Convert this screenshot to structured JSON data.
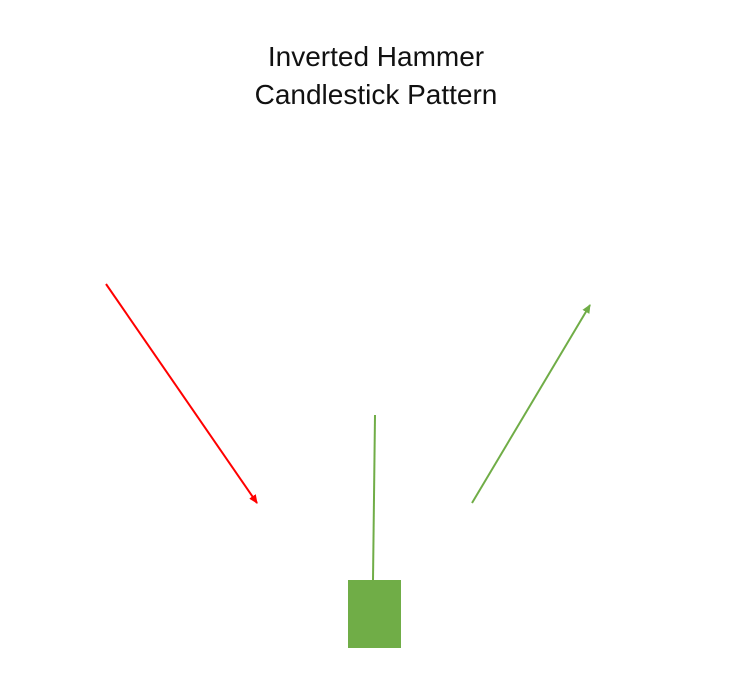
{
  "title": {
    "line1": "Inverted Hammer",
    "line2": "Candlestick Pattern"
  },
  "colors": {
    "downtrend_arrow": "#ff0000",
    "uptrend_arrow": "#70ad47",
    "candle": "#70ad47",
    "text": "#111111"
  },
  "elements": {
    "downtrend_arrow_icon": "arrow-down-right-icon",
    "uptrend_arrow_icon": "arrow-up-right-icon",
    "candle": "bullish-inverted-hammer-candle"
  }
}
